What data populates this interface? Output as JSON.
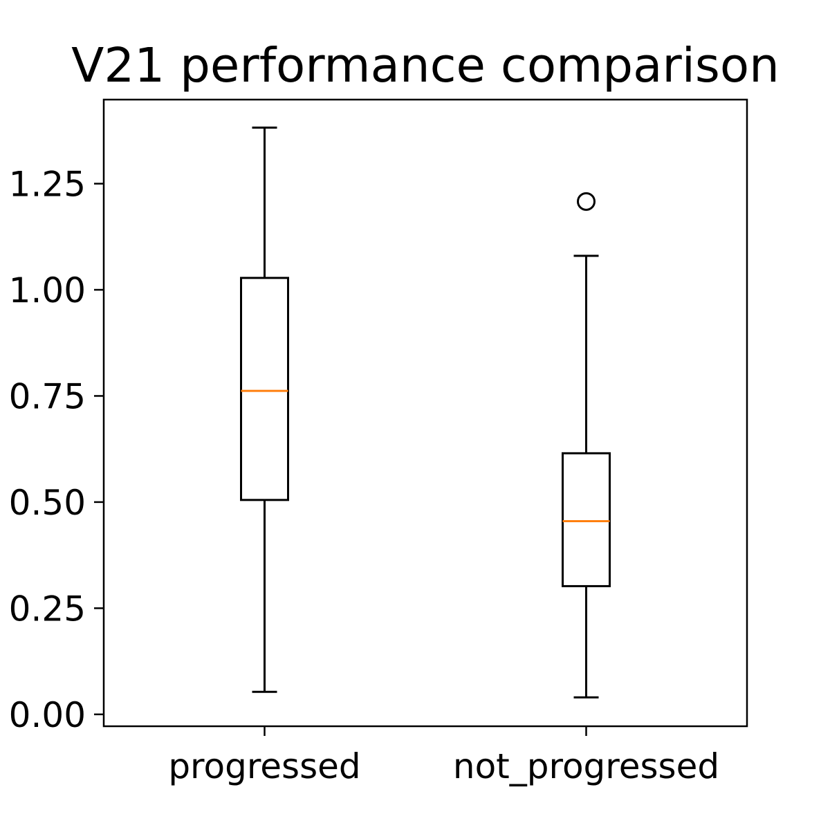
{
  "chart_data": {
    "type": "boxplot",
    "title": "V21 performance comparison",
    "xlabel": "",
    "ylabel": "",
    "categories": [
      "progressed",
      "not_progressed"
    ],
    "boxes": [
      {
        "category": "progressed",
        "whisker_low": 0.053,
        "q1": 0.505,
        "median": 0.762,
        "q3": 1.028,
        "whisker_high": 1.382,
        "outliers": []
      },
      {
        "category": "not_progressed",
        "whisker_low": 0.04,
        "q1": 0.302,
        "median": 0.455,
        "q3": 0.615,
        "whisker_high": 1.08,
        "outliers": [
          1.208
        ]
      }
    ],
    "y_ticks": [
      "0.00",
      "0.25",
      "0.50",
      "0.75",
      "1.00",
      "1.25"
    ],
    "y_tick_values": [
      0.0,
      0.25,
      0.5,
      0.75,
      1.0,
      1.25
    ],
    "ylim": [
      -0.028,
      1.448
    ],
    "grid": false,
    "colors": {
      "box": "#000000",
      "median": "#ff7f0e"
    }
  }
}
